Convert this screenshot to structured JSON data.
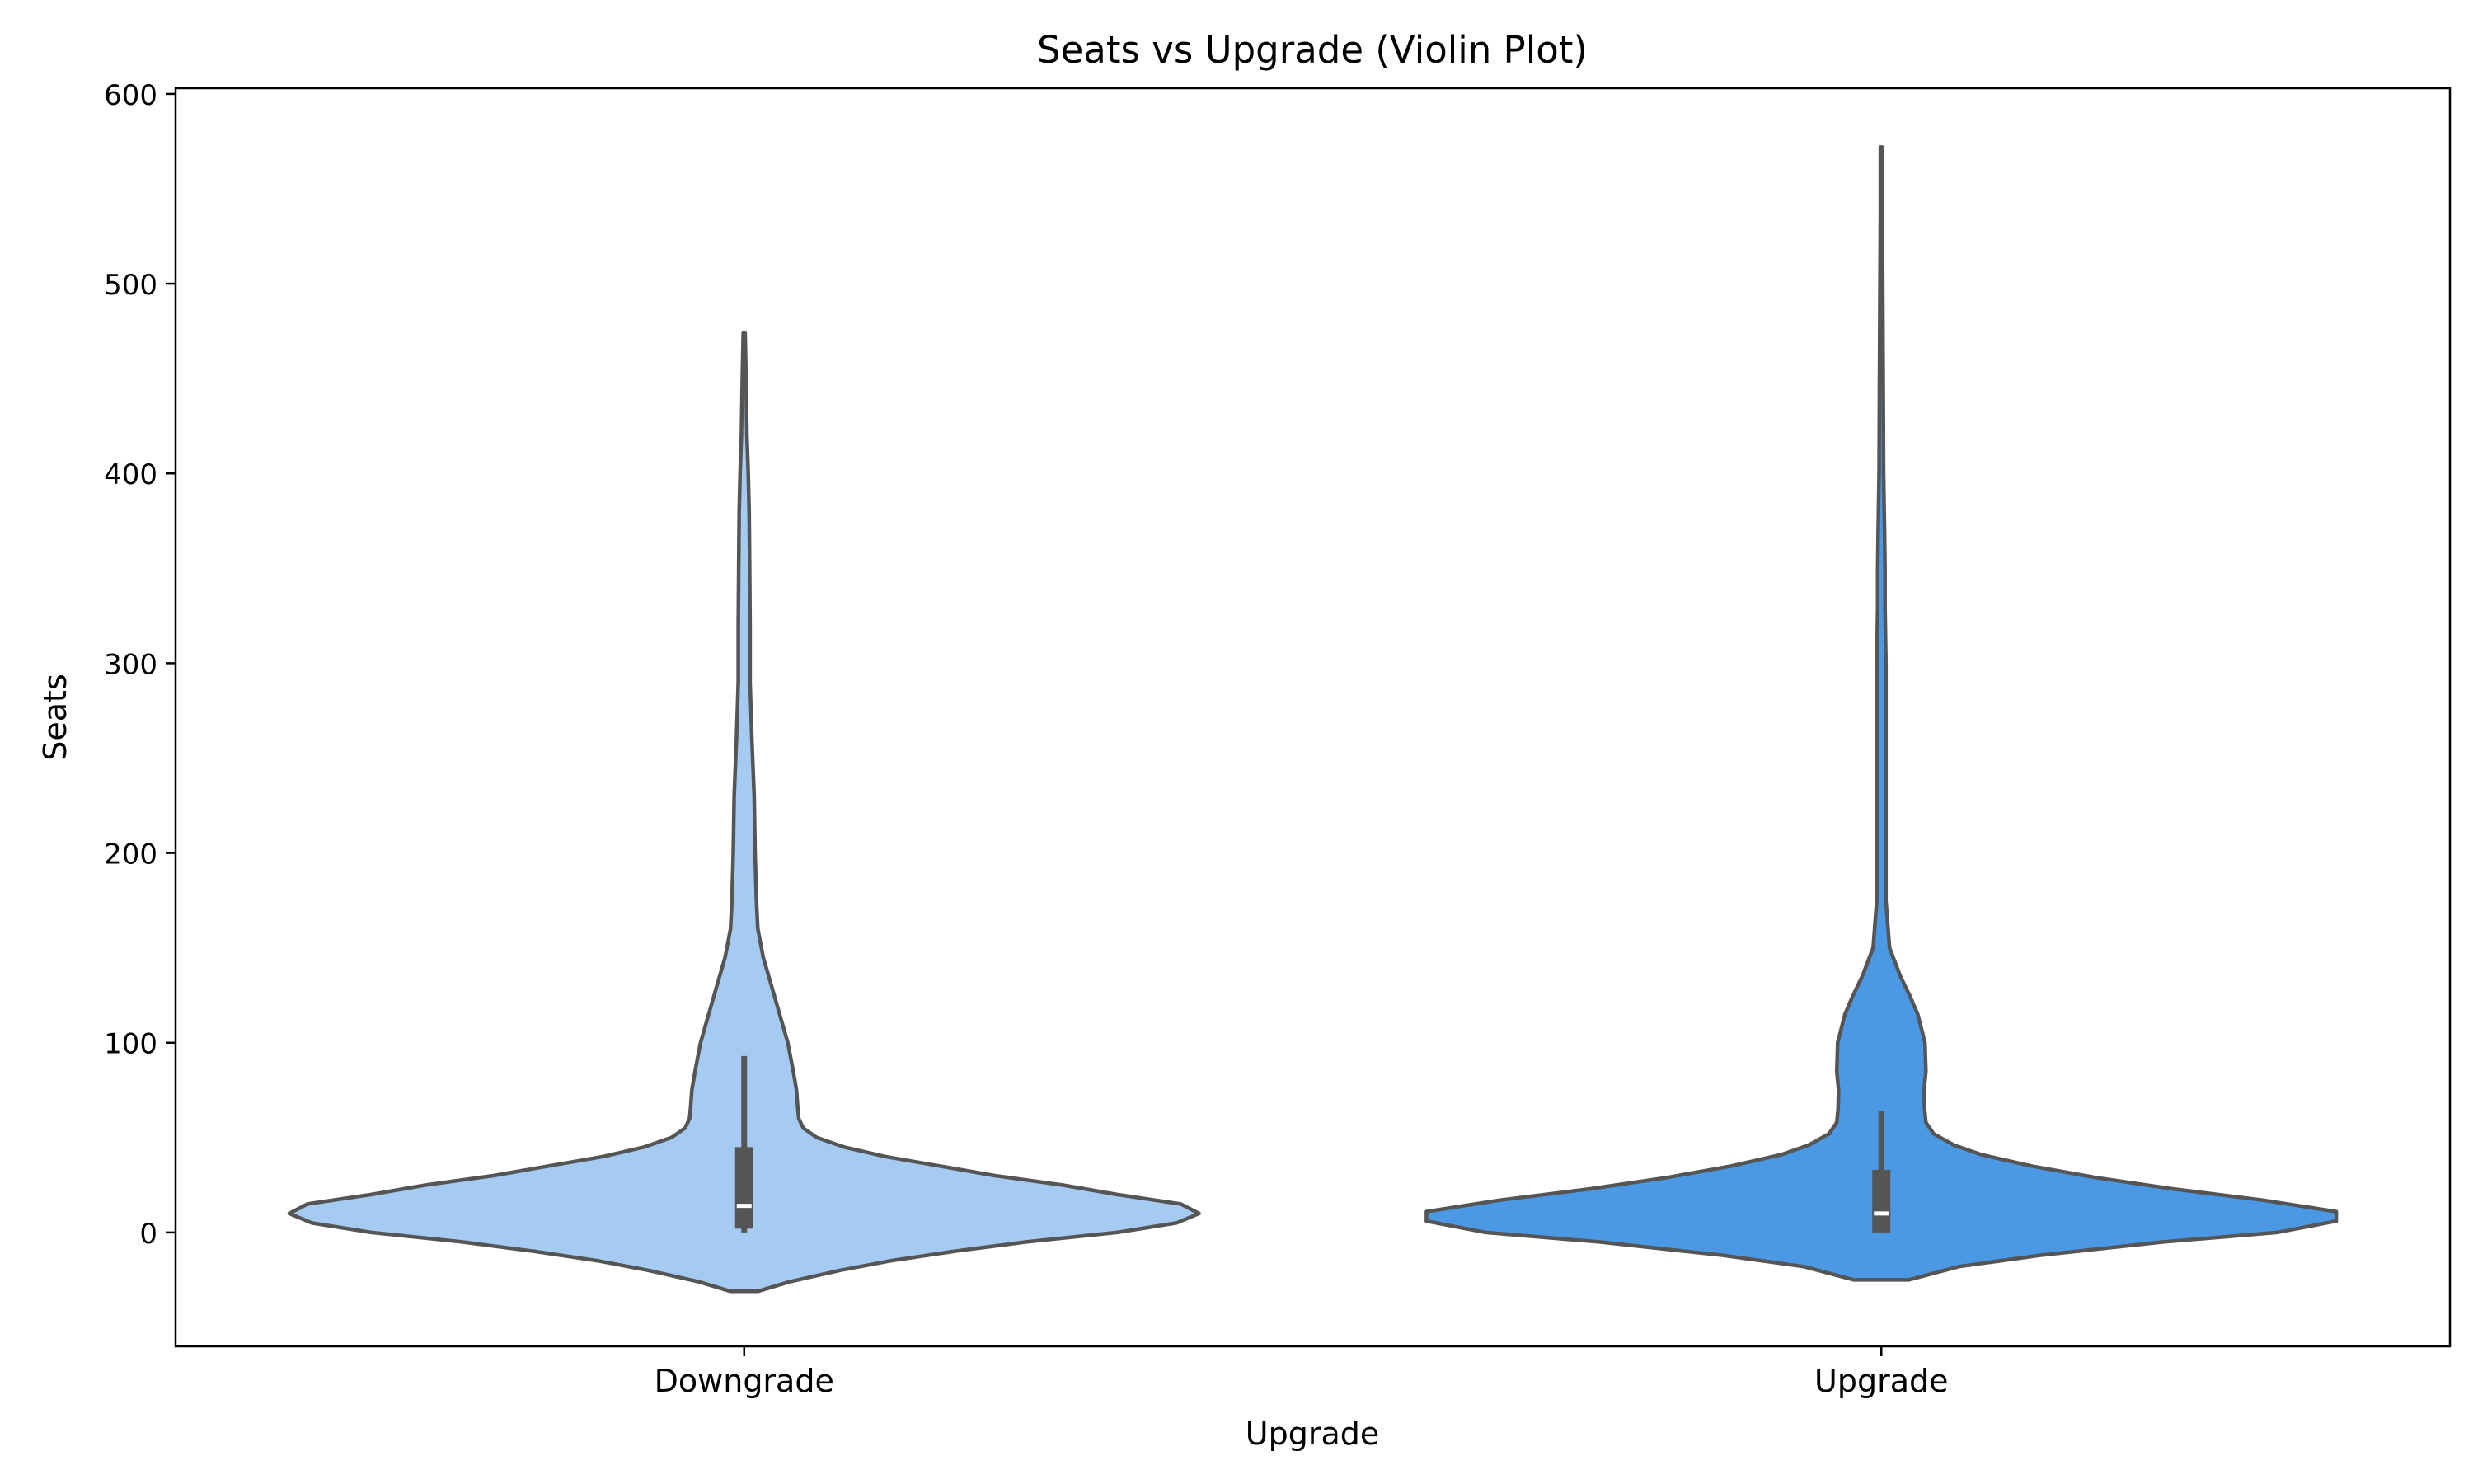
{
  "chart_data": {
    "type": "violin",
    "title": "Seats vs Upgrade (Violin Plot)",
    "xlabel": "Upgrade",
    "ylabel": "Seats",
    "ylim": [
      -60,
      603
    ],
    "yticks": [
      0,
      100,
      200,
      300,
      400,
      500,
      600
    ],
    "grid": false,
    "categories": [
      "Downgrade",
      "Upgrade"
    ],
    "colors": {
      "Downgrade": "#a6cbf2",
      "Upgrade": "#4b99e5",
      "outline": "#555555",
      "box": "#555555",
      "median": "#ffffff"
    },
    "series": [
      {
        "category": "Downgrade",
        "kde_range": [
          -31,
          474
        ],
        "profile": [
          [
            -31,
            0.03
          ],
          [
            -26,
            0.1
          ],
          [
            -20,
            0.21
          ],
          [
            -15,
            0.32
          ],
          [
            -10,
            0.46
          ],
          [
            -5,
            0.62
          ],
          [
            0,
            0.82
          ],
          [
            5,
            0.95
          ],
          [
            10,
            1.0
          ],
          [
            15,
            0.96
          ],
          [
            20,
            0.82
          ],
          [
            25,
            0.7
          ],
          [
            30,
            0.55
          ],
          [
            35,
            0.43
          ],
          [
            40,
            0.31
          ],
          [
            45,
            0.22
          ],
          [
            50,
            0.16
          ],
          [
            55,
            0.13
          ],
          [
            60,
            0.12
          ],
          [
            65,
            0.118
          ],
          [
            75,
            0.115
          ],
          [
            85,
            0.108
          ],
          [
            100,
            0.096
          ],
          [
            115,
            0.078
          ],
          [
            130,
            0.06
          ],
          [
            145,
            0.042
          ],
          [
            160,
            0.03
          ],
          [
            175,
            0.027
          ],
          [
            200,
            0.024
          ],
          [
            230,
            0.022
          ],
          [
            260,
            0.017
          ],
          [
            290,
            0.013
          ],
          [
            320,
            0.013
          ],
          [
            350,
            0.012
          ],
          [
            380,
            0.011
          ],
          [
            400,
            0.009
          ],
          [
            420,
            0.006
          ],
          [
            450,
            0.004
          ],
          [
            474,
            0.002
          ]
        ],
        "box": {
          "q1": 2,
          "median": 14,
          "q3": 45,
          "whisker_low": 0,
          "whisker_high": 93
        }
      },
      {
        "category": "Upgrade",
        "kde_range": [
          -25,
          572
        ],
        "profile": [
          [
            -25,
            0.06
          ],
          [
            -18,
            0.17
          ],
          [
            -12,
            0.35
          ],
          [
            -5,
            0.62
          ],
          [
            0,
            0.87
          ],
          [
            6,
            1.0
          ],
          [
            11,
            1.0
          ],
          [
            17,
            0.84
          ],
          [
            23,
            0.64
          ],
          [
            29,
            0.47
          ],
          [
            35,
            0.33
          ],
          [
            41,
            0.22
          ],
          [
            46,
            0.16
          ],
          [
            52,
            0.115
          ],
          [
            58,
            0.098
          ],
          [
            65,
            0.095
          ],
          [
            75,
            0.094
          ],
          [
            85,
            0.098
          ],
          [
            100,
            0.096
          ],
          [
            115,
            0.08
          ],
          [
            125,
            0.062
          ],
          [
            135,
            0.042
          ],
          [
            150,
            0.018
          ],
          [
            175,
            0.01
          ],
          [
            200,
            0.01
          ],
          [
            250,
            0.01
          ],
          [
            300,
            0.01
          ],
          [
            330,
            0.008
          ],
          [
            350,
            0.008
          ],
          [
            370,
            0.007
          ],
          [
            400,
            0.005
          ],
          [
            450,
            0.004
          ],
          [
            500,
            0.003
          ],
          [
            540,
            0.002
          ],
          [
            572,
            0.002
          ]
        ],
        "box": {
          "q1": 0,
          "median": 10,
          "q3": 33,
          "whisker_low": 0,
          "whisker_high": 64
        }
      }
    ]
  }
}
